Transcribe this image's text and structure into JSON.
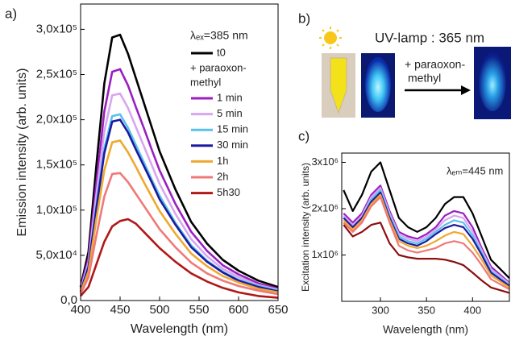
{
  "chart_data": [
    {
      "type": "line",
      "label": "a)",
      "xlabel": "Wavelength (nm)",
      "ylabel": "Emission intensity (arb. units)",
      "legend_title": "λₑₓ=385 nm",
      "legend_note": [
        "+ paraoxon-",
        "methyl"
      ],
      "x": [
        400,
        410,
        420,
        430,
        440,
        450,
        460,
        470,
        480,
        490,
        500,
        520,
        540,
        560,
        580,
        600,
        625,
        650
      ],
      "xlim": [
        400,
        650
      ],
      "xticks": [
        400,
        450,
        500,
        550,
        600,
        650
      ],
      "ylim": [
        0,
        328000
      ],
      "yticks": [
        {
          "value": 0,
          "label": "0,0"
        },
        {
          "value": 50000,
          "label": "5,0x10⁴"
        },
        {
          "value": 100000,
          "label": "1,0x10⁵"
        },
        {
          "value": 150000,
          "label": "1,5x10⁵"
        },
        {
          "value": 200000,
          "label": "2,0x10⁵"
        },
        {
          "value": 250000,
          "label": "2,5x10⁵"
        },
        {
          "value": 300000,
          "label": "3,0x10⁵"
        }
      ],
      "series": [
        {
          "name": "t0",
          "color": "#000000",
          "values": [
            15000,
            54000,
            150000,
            240000,
            291000,
            294000,
            273000,
            246000,
            219000,
            192000,
            165000,
            123000,
            87000,
            63000,
            45000,
            33000,
            22000,
            15000
          ]
        },
        {
          "name": "1 min",
          "color": "#9b1fc1",
          "values": [
            13000,
            47000,
            130000,
            209000,
            253000,
            256000,
            238000,
            214000,
            191000,
            167000,
            144000,
            107000,
            76000,
            55000,
            39000,
            29000,
            19000,
            13000
          ]
        },
        {
          "name": "5 min",
          "color": "#d8a6f0",
          "values": [
            12000,
            42000,
            117000,
            187000,
            227000,
            229000,
            213000,
            192000,
            171000,
            150000,
            129000,
            96000,
            68000,
            49000,
            35000,
            26000,
            17000,
            12000
          ]
        },
        {
          "name": "15 min",
          "color": "#5bc0eb",
          "values": [
            10000,
            38000,
            105000,
            168000,
            204000,
            206000,
            191000,
            172000,
            153000,
            134000,
            116000,
            86000,
            61000,
            44000,
            32000,
            23000,
            16000,
            11000
          ]
        },
        {
          "name": "30 min",
          "color": "#1a1aa0",
          "values": [
            10000,
            37000,
            102000,
            163000,
            198000,
            200000,
            186000,
            167000,
            149000,
            131000,
            112000,
            84000,
            59000,
            43000,
            31000,
            22000,
            15000,
            10000
          ]
        },
        {
          "name": "1h",
          "color": "#f0a830",
          "values": [
            9000,
            32000,
            90000,
            144000,
            175000,
            177000,
            164000,
            148000,
            131000,
            115000,
            99000,
            74000,
            52000,
            38000,
            27000,
            20000,
            13000,
            9000
          ]
        },
        {
          "name": "2h",
          "color": "#f07878",
          "values": [
            7000,
            26000,
            72000,
            115000,
            140000,
            141000,
            131000,
            118000,
            105000,
            92000,
            79000,
            59000,
            42000,
            30000,
            22000,
            16000,
            11000,
            7000
          ]
        },
        {
          "name": "5h30",
          "color": "#b01818",
          "values": [
            5000,
            15000,
            40000,
            65000,
            82000,
            88000,
            90000,
            85000,
            76000,
            67000,
            58000,
            43000,
            30000,
            21000,
            14000,
            9000,
            5000,
            3000
          ]
        }
      ]
    },
    {
      "type": "line",
      "label": "c)",
      "xlabel": "Wavelength (nm)",
      "ylabel": "Excitation intensity (arb. units)",
      "annotation": "λₑₘ=445 nm",
      "x": [
        260,
        270,
        280,
        290,
        300,
        310,
        320,
        330,
        340,
        350,
        360,
        370,
        380,
        390,
        400,
        410,
        420,
        440
      ],
      "xlim": [
        258,
        440
      ],
      "xticks": [
        300,
        350,
        400
      ],
      "ylim": [
        0,
        3200000
      ],
      "yticks": [
        {
          "value": 1000000,
          "label": "1x10⁶"
        },
        {
          "value": 2000000,
          "label": "2x10⁶"
        },
        {
          "value": 3000000,
          "label": "3x10⁶"
        }
      ],
      "series": [
        {
          "name": "t0",
          "color": "#000000",
          "values": [
            2400000,
            1950000,
            2300000,
            2800000,
            3000000,
            2400000,
            1800000,
            1600000,
            1500000,
            1600000,
            1800000,
            2100000,
            2250000,
            2250000,
            1900000,
            1400000,
            900000,
            500000
          ]
        },
        {
          "name": "1 min",
          "color": "#9b1fc1",
          "values": [
            1900000,
            1700000,
            1900000,
            2300000,
            2500000,
            1950000,
            1500000,
            1400000,
            1350000,
            1450000,
            1600000,
            1850000,
            1950000,
            1900000,
            1600000,
            1150000,
            750000,
            400000
          ]
        },
        {
          "name": "5 min",
          "color": "#d8a6f0",
          "values": [
            1850000,
            1650000,
            1850000,
            2250000,
            2450000,
            1900000,
            1450000,
            1350000,
            1300000,
            1400000,
            1550000,
            1750000,
            1850000,
            1800000,
            1500000,
            1100000,
            700000,
            380000
          ]
        },
        {
          "name": "15 min",
          "color": "#5bc0eb",
          "values": [
            1800000,
            1600000,
            1800000,
            2200000,
            2400000,
            1850000,
            1400000,
            1300000,
            1250000,
            1350000,
            1500000,
            1650000,
            1750000,
            1700000,
            1420000,
            1050000,
            650000,
            350000
          ]
        },
        {
          "name": "30 min",
          "color": "#1a1aa0",
          "values": [
            1800000,
            1600000,
            1800000,
            2150000,
            2350000,
            1800000,
            1350000,
            1250000,
            1200000,
            1300000,
            1450000,
            1580000,
            1650000,
            1600000,
            1350000,
            1000000,
            620000,
            330000
          ]
        },
        {
          "name": "1h",
          "color": "#f0a830",
          "values": [
            1750000,
            1550000,
            1750000,
            2100000,
            2300000,
            1750000,
            1300000,
            1200000,
            1150000,
            1200000,
            1300000,
            1420000,
            1500000,
            1450000,
            1200000,
            900000,
            560000,
            300000
          ]
        },
        {
          "name": "2h",
          "color": "#f07878",
          "values": [
            1700000,
            1500000,
            1700000,
            2050000,
            2250000,
            1700000,
            1200000,
            1100000,
            1050000,
            1100000,
            1150000,
            1250000,
            1300000,
            1250000,
            1050000,
            780000,
            480000,
            260000
          ]
        },
        {
          "name": "5h30",
          "color": "#8b0f0f",
          "values": [
            1650000,
            1400000,
            1500000,
            1650000,
            1700000,
            1250000,
            1000000,
            950000,
            920000,
            920000,
            920000,
            900000,
            850000,
            780000,
            620000,
            450000,
            300000,
            180000
          ]
        }
      ]
    }
  ],
  "panel_b": {
    "label": "b)",
    "lamp": "UV-lamp : 365 nm",
    "addition": [
      "+ paraoxon-",
      "methyl"
    ]
  }
}
